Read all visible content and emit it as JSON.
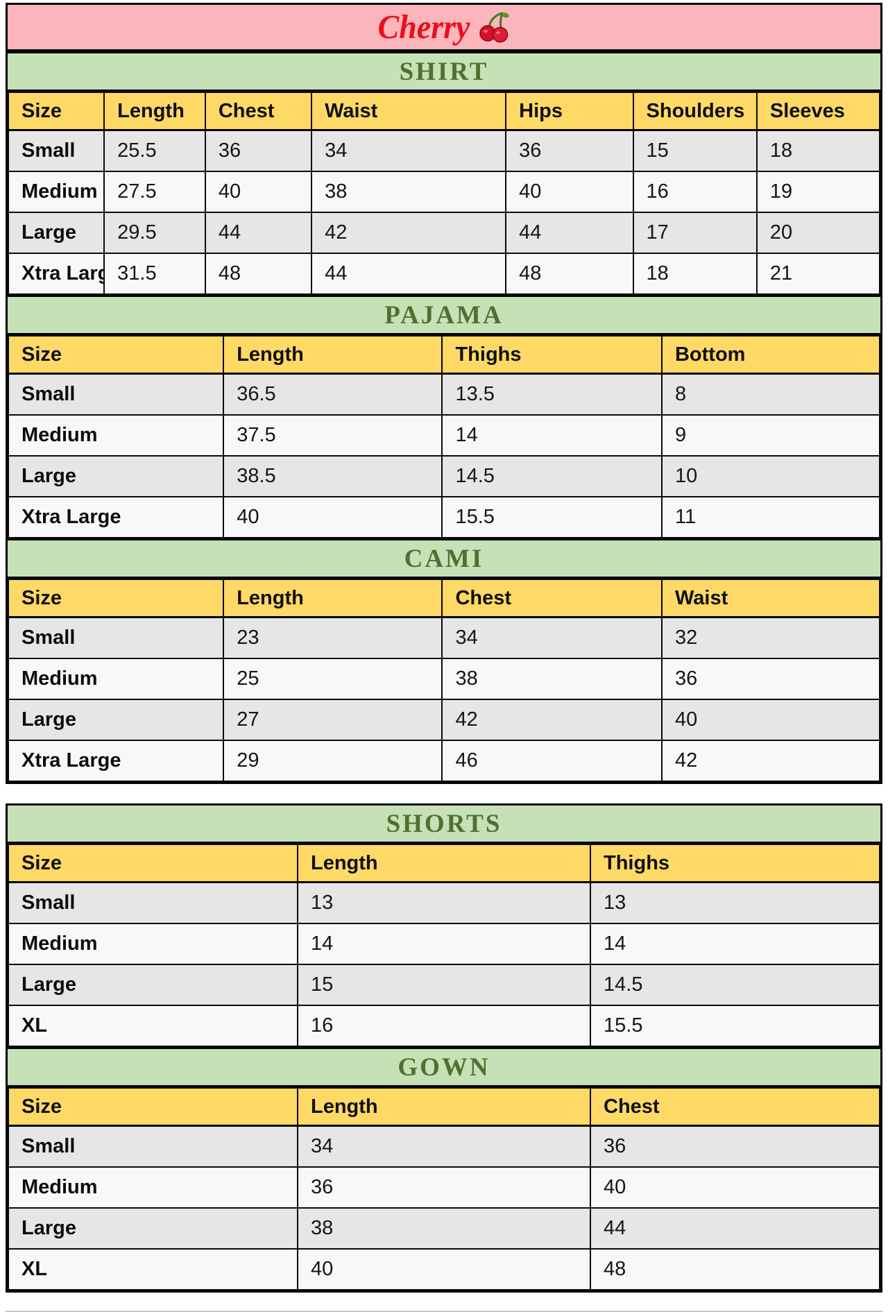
{
  "page": {
    "brand": "Cherry",
    "brand_color": "#ea0f1e",
    "brand_bar_bg": "#fcb5bb",
    "section_header_bg": "#c7e1b7",
    "section_title_color": "#4e7031",
    "column_header_bg": "#fed966",
    "row_bg": "#f8f8f8",
    "row_alt_bg": "#e7e6e6",
    "cherry_icon": "cherry-fruit-emoji"
  },
  "tables": [
    {
      "id": "shirt",
      "title": "SHIRT",
      "columns": [
        "Size",
        "Length",
        "Chest",
        "Waist",
        "Hips",
        "Shoulders",
        "Sleeves"
      ],
      "rows": [
        [
          "Small",
          "25.5",
          "36",
          "34",
          "36",
          "15",
          "18"
        ],
        [
          "Medium",
          "27.5",
          "40",
          "38",
          "40",
          "16",
          "19"
        ],
        [
          "Large",
          "29.5",
          "44",
          "42",
          "44",
          "17",
          "20"
        ],
        [
          "Xtra Large",
          "31.5",
          "48",
          "44",
          "48",
          "18",
          "21"
        ]
      ]
    },
    {
      "id": "pajama",
      "title": "PAJAMA",
      "columns": [
        "Size",
        "Length",
        "Thighs",
        "Bottom"
      ],
      "rows": [
        [
          "Small",
          "36.5",
          "13.5",
          "8"
        ],
        [
          "Medium",
          "37.5",
          "14",
          "9"
        ],
        [
          "Large",
          "38.5",
          "14.5",
          "10"
        ],
        [
          "Xtra Large",
          "40",
          "15.5",
          "11"
        ]
      ]
    },
    {
      "id": "cami",
      "title": "CAMI",
      "columns": [
        "Size",
        "Length",
        "Chest",
        "Waist"
      ],
      "rows": [
        [
          "Small",
          "23",
          "34",
          "32"
        ],
        [
          "Medium",
          "25",
          "38",
          "36"
        ],
        [
          "Large",
          "27",
          "42",
          "40"
        ],
        [
          "Xtra Large",
          "29",
          "46",
          "42"
        ]
      ]
    },
    {
      "id": "shorts",
      "title": "SHORTS",
      "columns": [
        "Size",
        "Length",
        "Thighs"
      ],
      "rows": [
        [
          "Small",
          "13",
          "13"
        ],
        [
          "Medium",
          "14",
          "14"
        ],
        [
          "Large",
          "15",
          "14.5"
        ],
        [
          "XL",
          "16",
          "15.5"
        ]
      ]
    },
    {
      "id": "gown",
      "title": "GOWN",
      "columns": [
        "Size",
        "Length",
        "Chest"
      ],
      "rows": [
        [
          "Small",
          "34",
          "36"
        ],
        [
          "Medium",
          "36",
          "40"
        ],
        [
          "Large",
          "38",
          "44"
        ],
        [
          "XL",
          "40",
          "48"
        ]
      ]
    }
  ]
}
